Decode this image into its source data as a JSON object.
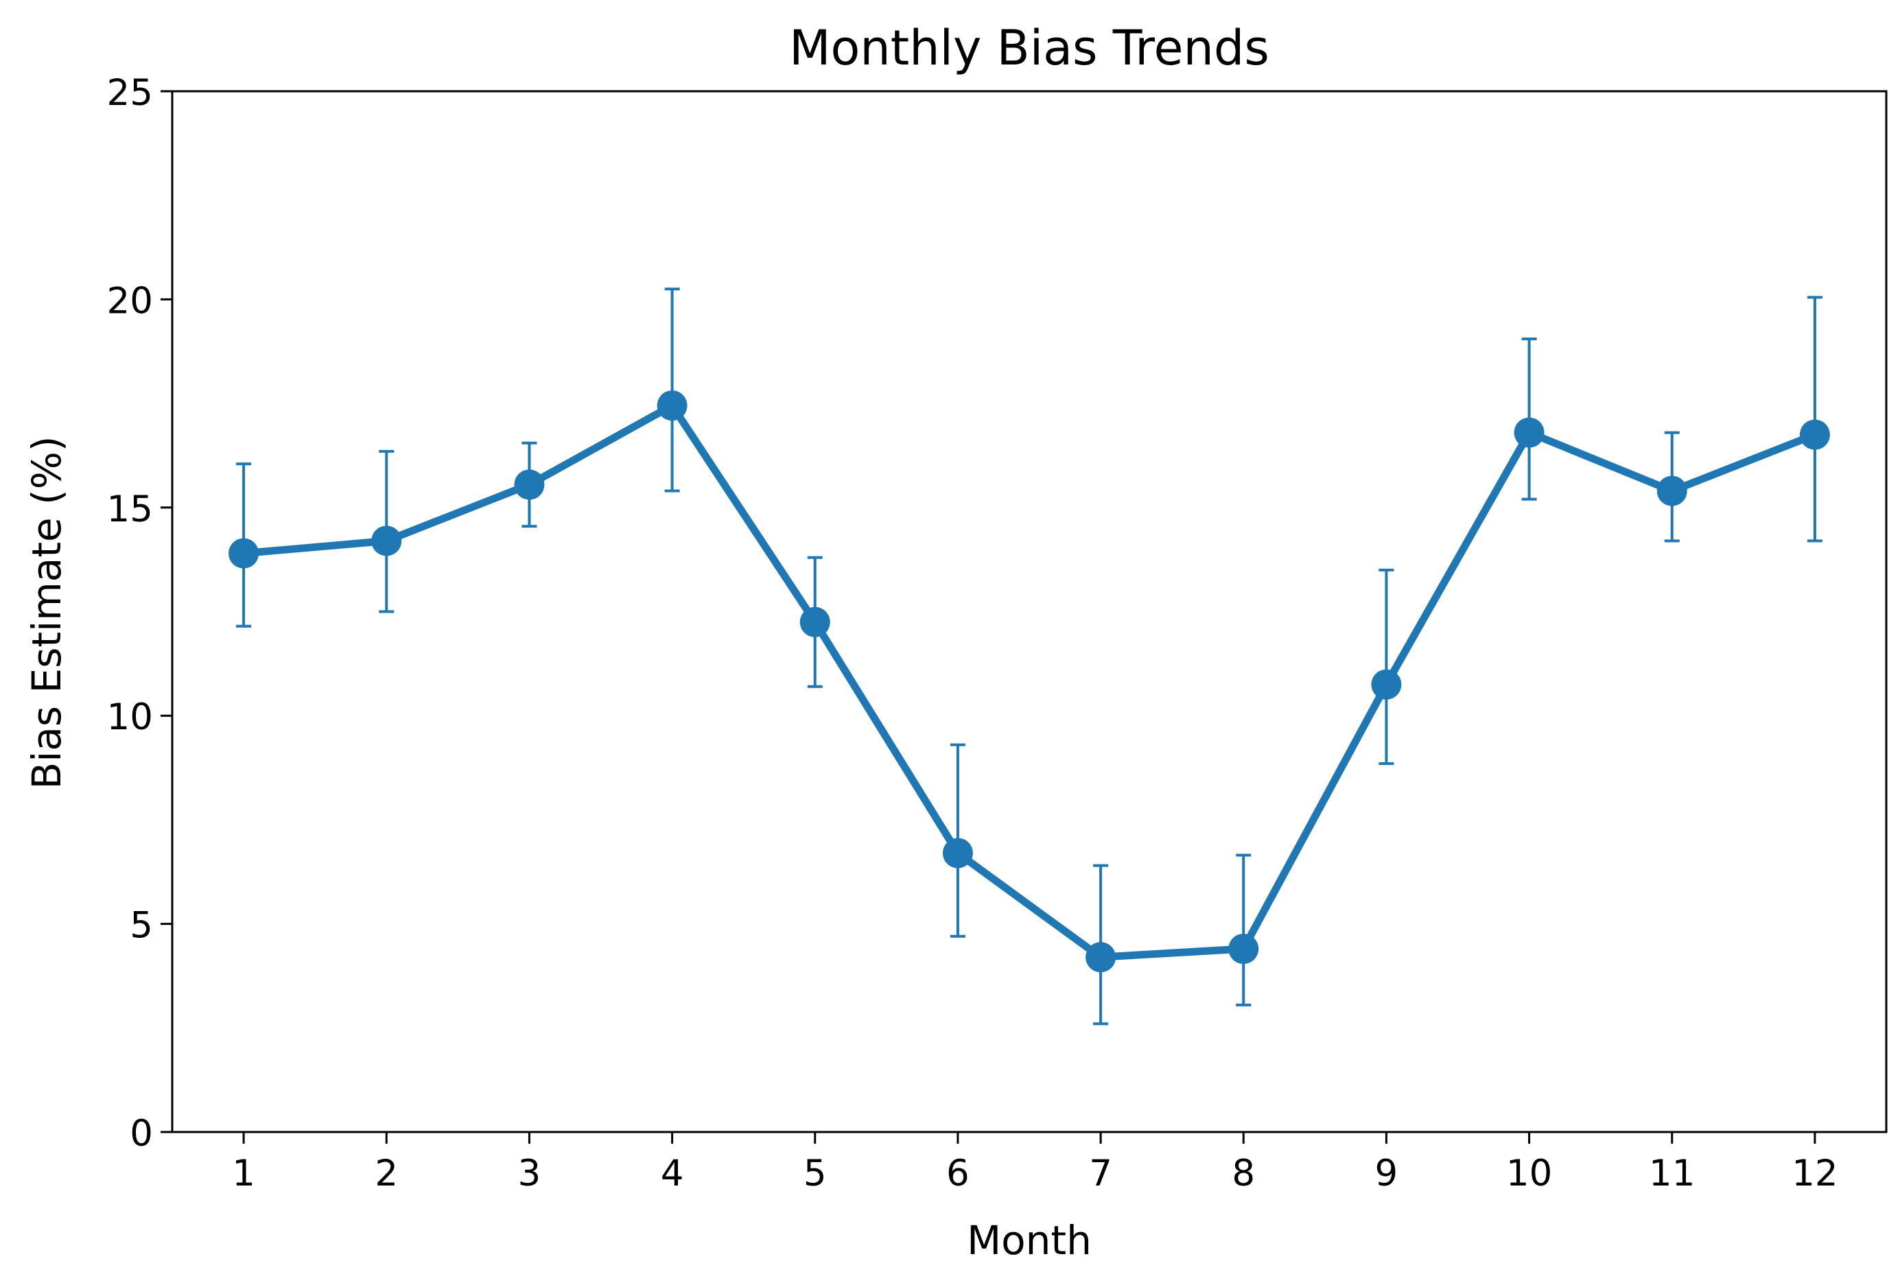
{
  "chart_data": {
    "type": "line",
    "title": "Monthly Bias Trends",
    "xlabel": "Month",
    "ylabel": "Bias Estimate (%)",
    "x": [
      1,
      2,
      3,
      4,
      5,
      6,
      7,
      8,
      9,
      10,
      11,
      12
    ],
    "x_tick_labels": [
      "1",
      "2",
      "3",
      "4",
      "5",
      "6",
      "7",
      "8",
      "9",
      "10",
      "11",
      "12"
    ],
    "xlim": [
      0.5,
      12.5
    ],
    "ylim": [
      0,
      25
    ],
    "y_ticks": [
      0,
      5,
      10,
      15,
      20,
      25
    ],
    "y_tick_labels": [
      "0",
      "5",
      "10",
      "15",
      "20",
      "25"
    ],
    "grid": false,
    "legend": "none",
    "series": [
      {
        "values": [
          13.9,
          14.2,
          15.55,
          17.45,
          12.25,
          6.7,
          4.2,
          4.4,
          10.75,
          16.8,
          15.4,
          16.75
        ],
        "error_low": [
          12.15,
          12.5,
          14.55,
          15.4,
          10.7,
          4.7,
          2.6,
          3.05,
          8.85,
          15.2,
          14.2,
          14.2
        ],
        "error_high": [
          16.05,
          16.35,
          16.55,
          20.25,
          13.8,
          9.3,
          6.4,
          6.65,
          13.5,
          19.05,
          16.8,
          20.05
        ],
        "color": "#1f77b4"
      }
    ]
  }
}
